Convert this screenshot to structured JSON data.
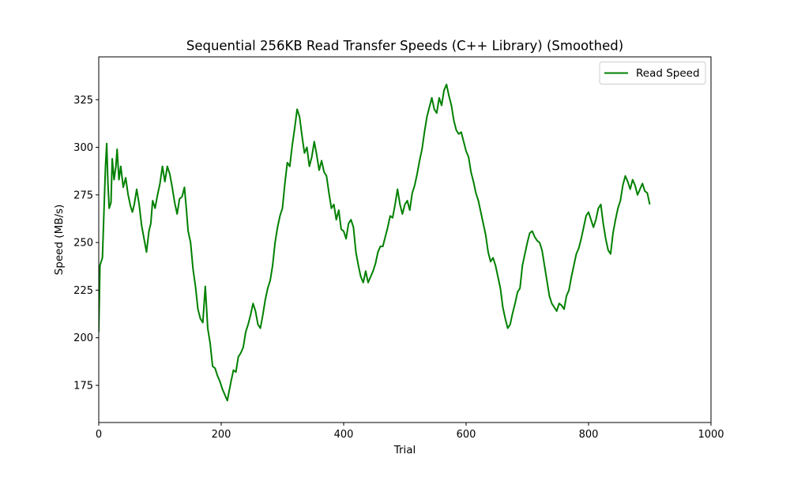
{
  "chart_data": {
    "type": "line",
    "title": "Sequential 256KB Read Transfer Speeds (C++ Library) (Smoothed)",
    "xlabel": "Trial",
    "ylabel": "Speed (MB/s)",
    "xlim": [
      0,
      1000
    ],
    "ylim": [
      155.5,
      347.5
    ],
    "x_ticks": [
      0,
      200,
      400,
      600,
      800,
      1000
    ],
    "y_ticks": [
      175,
      200,
      225,
      250,
      275,
      300,
      325
    ],
    "grid": false,
    "legend_position": "top-right",
    "series": [
      {
        "name": "Read Speed",
        "color": "#008000",
        "points": [
          [
            0,
            203
          ],
          [
            2,
            238
          ],
          [
            6,
            242
          ],
          [
            9,
            271
          ],
          [
            11,
            290
          ],
          [
            13,
            302
          ],
          [
            15,
            281
          ],
          [
            17,
            268
          ],
          [
            20,
            271
          ],
          [
            22,
            294
          ],
          [
            25,
            283
          ],
          [
            28,
            290
          ],
          [
            30,
            299
          ],
          [
            33,
            283
          ],
          [
            36,
            290
          ],
          [
            40,
            279
          ],
          [
            44,
            284
          ],
          [
            48,
            275
          ],
          [
            52,
            269
          ],
          [
            55,
            266
          ],
          [
            58,
            270
          ],
          [
            62,
            278
          ],
          [
            66,
            270
          ],
          [
            70,
            259
          ],
          [
            74,
            252
          ],
          [
            78,
            245
          ],
          [
            82,
            256
          ],
          [
            85,
            260
          ],
          [
            88,
            272
          ],
          [
            92,
            268
          ],
          [
            96,
            275
          ],
          [
            100,
            281
          ],
          [
            104,
            290
          ],
          [
            108,
            282
          ],
          [
            112,
            290
          ],
          [
            116,
            286
          ],
          [
            120,
            279
          ],
          [
            124,
            271
          ],
          [
            128,
            265
          ],
          [
            132,
            273
          ],
          [
            136,
            274
          ],
          [
            140,
            279
          ],
          [
            143,
            268
          ],
          [
            146,
            256
          ],
          [
            150,
            250
          ],
          [
            154,
            236
          ],
          [
            158,
            227
          ],
          [
            162,
            215
          ],
          [
            166,
            210
          ],
          [
            170,
            208
          ],
          [
            174,
            227
          ],
          [
            178,
            205
          ],
          [
            182,
            197
          ],
          [
            186,
            185
          ],
          [
            190,
            184
          ],
          [
            194,
            180
          ],
          [
            198,
            177
          ],
          [
            202,
            173
          ],
          [
            206,
            170
          ],
          [
            210,
            167
          ],
          [
            213,
            172
          ],
          [
            216,
            177
          ],
          [
            220,
            183
          ],
          [
            224,
            182
          ],
          [
            228,
            190
          ],
          [
            232,
            192
          ],
          [
            236,
            195
          ],
          [
            240,
            203
          ],
          [
            244,
            207
          ],
          [
            248,
            212
          ],
          [
            252,
            218
          ],
          [
            256,
            214
          ],
          [
            260,
            207
          ],
          [
            264,
            205
          ],
          [
            268,
            212
          ],
          [
            272,
            220
          ],
          [
            276,
            226
          ],
          [
            280,
            230
          ],
          [
            284,
            238
          ],
          [
            288,
            250
          ],
          [
            292,
            258
          ],
          [
            296,
            264
          ],
          [
            300,
            268
          ],
          [
            304,
            281
          ],
          [
            308,
            292
          ],
          [
            312,
            290
          ],
          [
            316,
            301
          ],
          [
            320,
            310
          ],
          [
            324,
            320
          ],
          [
            328,
            316
          ],
          [
            332,
            306
          ],
          [
            336,
            297
          ],
          [
            340,
            300
          ],
          [
            344,
            290
          ],
          [
            348,
            295
          ],
          [
            352,
            303
          ],
          [
            356,
            296
          ],
          [
            360,
            288
          ],
          [
            364,
            293
          ],
          [
            368,
            287
          ],
          [
            372,
            285
          ],
          [
            376,
            276
          ],
          [
            380,
            268
          ],
          [
            384,
            270
          ],
          [
            388,
            262
          ],
          [
            392,
            267
          ],
          [
            396,
            257
          ],
          [
            400,
            256
          ],
          [
            404,
            252
          ],
          [
            408,
            260
          ],
          [
            412,
            262
          ],
          [
            416,
            258
          ],
          [
            420,
            245
          ],
          [
            424,
            238
          ],
          [
            428,
            232
          ],
          [
            432,
            229
          ],
          [
            436,
            235
          ],
          [
            440,
            229
          ],
          [
            444,
            232
          ],
          [
            448,
            235
          ],
          [
            452,
            239
          ],
          [
            456,
            245
          ],
          [
            460,
            248
          ],
          [
            464,
            248
          ],
          [
            468,
            253
          ],
          [
            472,
            258
          ],
          [
            476,
            264
          ],
          [
            480,
            263
          ],
          [
            484,
            270
          ],
          [
            488,
            278
          ],
          [
            492,
            270
          ],
          [
            496,
            265
          ],
          [
            500,
            270
          ],
          [
            504,
            272
          ],
          [
            508,
            267
          ],
          [
            512,
            276
          ],
          [
            516,
            280
          ],
          [
            520,
            286
          ],
          [
            524,
            293
          ],
          [
            528,
            299
          ],
          [
            532,
            308
          ],
          [
            536,
            316
          ],
          [
            540,
            321
          ],
          [
            544,
            326
          ],
          [
            548,
            320
          ],
          [
            552,
            318
          ],
          [
            556,
            326
          ],
          [
            560,
            322
          ],
          [
            564,
            330
          ],
          [
            568,
            333
          ],
          [
            572,
            327
          ],
          [
            576,
            322
          ],
          [
            580,
            314
          ],
          [
            584,
            309
          ],
          [
            588,
            307
          ],
          [
            592,
            308
          ],
          [
            596,
            303
          ],
          [
            600,
            298
          ],
          [
            604,
            295
          ],
          [
            608,
            287
          ],
          [
            612,
            282
          ],
          [
            616,
            276
          ],
          [
            620,
            272
          ],
          [
            624,
            266
          ],
          [
            628,
            260
          ],
          [
            632,
            254
          ],
          [
            636,
            245
          ],
          [
            640,
            240
          ],
          [
            644,
            242
          ],
          [
            648,
            238
          ],
          [
            652,
            232
          ],
          [
            656,
            226
          ],
          [
            660,
            216
          ],
          [
            664,
            210
          ],
          [
            668,
            205
          ],
          [
            672,
            207
          ],
          [
            676,
            213
          ],
          [
            680,
            218
          ],
          [
            684,
            224
          ],
          [
            688,
            226
          ],
          [
            692,
            238
          ],
          [
            696,
            244
          ],
          [
            700,
            250
          ],
          [
            704,
            255
          ],
          [
            708,
            256
          ],
          [
            712,
            253
          ],
          [
            716,
            251
          ],
          [
            720,
            250
          ],
          [
            724,
            246
          ],
          [
            728,
            238
          ],
          [
            732,
            230
          ],
          [
            736,
            222
          ],
          [
            740,
            218
          ],
          [
            744,
            216
          ],
          [
            748,
            214
          ],
          [
            752,
            218
          ],
          [
            756,
            217
          ],
          [
            760,
            215
          ],
          [
            764,
            222
          ],
          [
            768,
            225
          ],
          [
            772,
            232
          ],
          [
            776,
            238
          ],
          [
            780,
            244
          ],
          [
            784,
            247
          ],
          [
            788,
            252
          ],
          [
            792,
            258
          ],
          [
            796,
            264
          ],
          [
            800,
            266
          ],
          [
            804,
            262
          ],
          [
            808,
            258
          ],
          [
            812,
            262
          ],
          [
            816,
            268
          ],
          [
            820,
            270
          ],
          [
            824,
            260
          ],
          [
            828,
            252
          ],
          [
            832,
            246
          ],
          [
            836,
            244
          ],
          [
            840,
            255
          ],
          [
            844,
            262
          ],
          [
            848,
            268
          ],
          [
            852,
            272
          ],
          [
            856,
            280
          ],
          [
            860,
            285
          ],
          [
            864,
            282
          ],
          [
            868,
            278
          ],
          [
            872,
            283
          ],
          [
            876,
            280
          ],
          [
            880,
            275
          ],
          [
            884,
            278
          ],
          [
            888,
            281
          ],
          [
            892,
            277
          ],
          [
            896,
            276
          ],
          [
            900,
            270
          ]
        ]
      }
    ]
  }
}
